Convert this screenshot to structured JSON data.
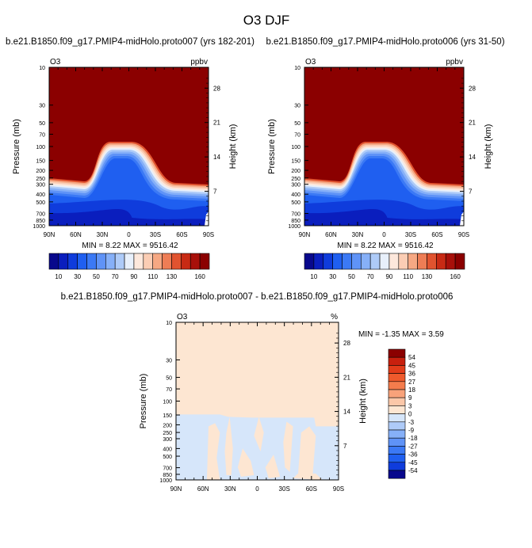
{
  "figure": {
    "title": "O3 DJF"
  },
  "chart_data": [
    {
      "type": "heatmap",
      "title": "b.e21.B1850.f09_g17.PMIP4-midHolo.proto007 (yrs 182-201)",
      "corner_left": "O3",
      "corner_right": "ppbv",
      "xlabel": "",
      "ylabel": "Pressure (mb)",
      "ylabel_right": "Height (km)",
      "x_ticks": [
        "90N",
        "60N",
        "30N",
        "0",
        "30S",
        "60S",
        "90S"
      ],
      "y_ticks": [
        10,
        30,
        50,
        70,
        100,
        150,
        200,
        250,
        300,
        400,
        500,
        700,
        850,
        1000
      ],
      "height_ticks": [
        28,
        21,
        14,
        7
      ],
      "ylim": [
        1000,
        10
      ],
      "y_scale": "log",
      "min_max_text": "MIN =   8.22  MAX = 9516.42",
      "colorbar": {
        "levels": [
          10,
          20,
          30,
          40,
          50,
          60,
          70,
          80,
          90,
          100,
          110,
          120,
          130,
          140,
          150,
          160
        ],
        "tick_labels": [
          "10",
          "30",
          "50",
          "70",
          "90",
          "110",
          "130",
          "160"
        ],
        "colors": [
          "#08088c",
          "#0a1ebe",
          "#0f3cdc",
          "#1f5ff0",
          "#3b79f5",
          "#5f93f7",
          "#86b0f8",
          "#aecbf8",
          "#e8f0fb",
          "#fde8dc",
          "#fbcdb4",
          "#f6a883",
          "#ee7d55",
          "#e1532f",
          "#c82a14",
          "#a8100a",
          "#8b0000"
        ],
        "orientation": "horizontal"
      }
    },
    {
      "type": "heatmap",
      "title": "b.e21.B1850.f09_g17.PMIP4-midHolo.proto006 (yrs 31-50)",
      "corner_left": "O3",
      "corner_right": "ppbv",
      "xlabel": "",
      "ylabel": "Pressure (mb)",
      "ylabel_right": "Height (km)",
      "x_ticks": [
        "90N",
        "60N",
        "30N",
        "0",
        "30S",
        "60S",
        "90S"
      ],
      "y_ticks": [
        10,
        30,
        50,
        70,
        100,
        150,
        200,
        250,
        300,
        400,
        500,
        700,
        850,
        1000
      ],
      "height_ticks": [
        28,
        21,
        14,
        7
      ],
      "ylim": [
        1000,
        10
      ],
      "y_scale": "log",
      "min_max_text": "MIN =   8.22  MAX = 9516.42",
      "colorbar": {
        "levels": [
          10,
          20,
          30,
          40,
          50,
          60,
          70,
          80,
          90,
          100,
          110,
          120,
          130,
          140,
          150,
          160
        ],
        "tick_labels": [
          "10",
          "30",
          "50",
          "70",
          "90",
          "110",
          "130",
          "160"
        ],
        "colors": [
          "#08088c",
          "#0a1ebe",
          "#0f3cdc",
          "#1f5ff0",
          "#3b79f5",
          "#5f93f7",
          "#86b0f8",
          "#aecbf8",
          "#e8f0fb",
          "#fde8dc",
          "#fbcdb4",
          "#f6a883",
          "#ee7d55",
          "#e1532f",
          "#c82a14",
          "#a8100a",
          "#8b0000"
        ],
        "orientation": "horizontal"
      }
    },
    {
      "type": "heatmap",
      "title": "b.e21.B1850.f09_g17.PMIP4-midHolo.proto007 - b.e21.B1850.f09_g17.PMIP4-midHolo.proto006",
      "corner_left": "O3",
      "corner_right": "%",
      "xlabel": "",
      "ylabel": "Pressure (mb)",
      "ylabel_right": "Height (km)",
      "x_ticks": [
        "90N",
        "60N",
        "30N",
        "0",
        "30S",
        "60S",
        "90S"
      ],
      "y_ticks": [
        10,
        30,
        50,
        70,
        100,
        150,
        200,
        250,
        300,
        400,
        500,
        700,
        850,
        1000
      ],
      "height_ticks": [
        28,
        21,
        14,
        7
      ],
      "ylim": [
        1000,
        10
      ],
      "y_scale": "log",
      "min_max_text": "MIN =  -1.35  MAX =   3.59",
      "colorbar": {
        "levels": [
          54,
          45,
          36,
          27,
          18,
          9,
          3,
          0,
          -3,
          -9,
          -18,
          -27,
          -36,
          -45,
          -54
        ],
        "tick_labels": [
          "54",
          "45",
          "36",
          "27",
          "18",
          "9",
          "3",
          "0",
          "-3",
          "-9",
          "-18",
          "-27",
          "-36",
          "-45",
          "-54"
        ],
        "colors": [
          "#8b0000",
          "#c8200e",
          "#e23c1a",
          "#ef5a2c",
          "#f47c4c",
          "#f8a27a",
          "#fbc7a8",
          "#fde6d2",
          "#d6e6fa",
          "#aecbf8",
          "#86b0f8",
          "#5f93f7",
          "#3b79f5",
          "#1f5ff0",
          "#0f3cdc",
          "#08088c"
        ],
        "orientation": "vertical"
      }
    }
  ]
}
